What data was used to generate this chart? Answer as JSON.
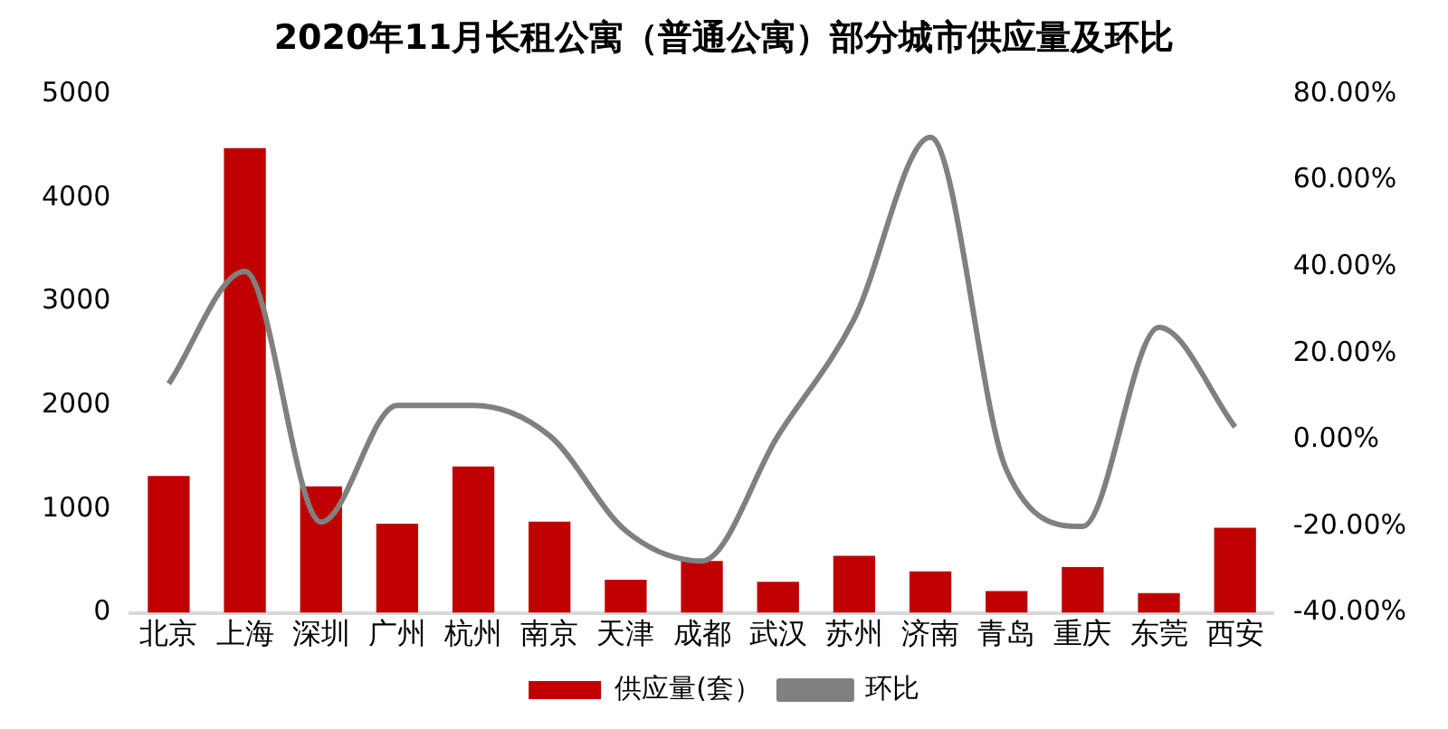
{
  "chart_data": {
    "type": "bar",
    "title": "2020年11月长租公寓（普通公寓）部分城市供应量及环比",
    "categories": [
      "北京",
      "上海",
      "深圳",
      "广州",
      "杭州",
      "南京",
      "天津",
      "成都",
      "武汉",
      "苏州",
      "济南",
      "青岛",
      "重庆",
      "东莞",
      "西安"
    ],
    "series": [
      {
        "name": "供应量(套）",
        "color": "#c00000",
        "values": [
          1320,
          4480,
          1220,
          860,
          1410,
          880,
          320,
          500,
          300,
          550,
          400,
          210,
          440,
          190,
          820
        ]
      },
      {
        "name": "环比",
        "type": "line",
        "axis": "y2",
        "color": "#808080",
        "values": [
          13,
          39,
          -19,
          8,
          8,
          1,
          -21,
          -28,
          1,
          28,
          70,
          -7,
          -20,
          26,
          3
        ]
      }
    ],
    "ylim": [
      0,
      5000
    ],
    "yticks": [
      0,
      1000,
      2000,
      3000,
      4000,
      5000
    ],
    "y2lim": [
      -40,
      80
    ],
    "y2ticks": [
      {
        "value": -40,
        "label": "-40.00%"
      },
      {
        "value": -20,
        "label": "-20.00%"
      },
      {
        "value": 0,
        "label": "0.00%"
      },
      {
        "value": 20,
        "label": "20.00%"
      },
      {
        "value": 40,
        "label": "40.00%"
      },
      {
        "value": 60,
        "label": "60.00%"
      },
      {
        "value": 80,
        "label": "80.00%"
      }
    ],
    "grid": false,
    "legend": "bottom",
    "marker": "none",
    "line_style": "solid"
  }
}
